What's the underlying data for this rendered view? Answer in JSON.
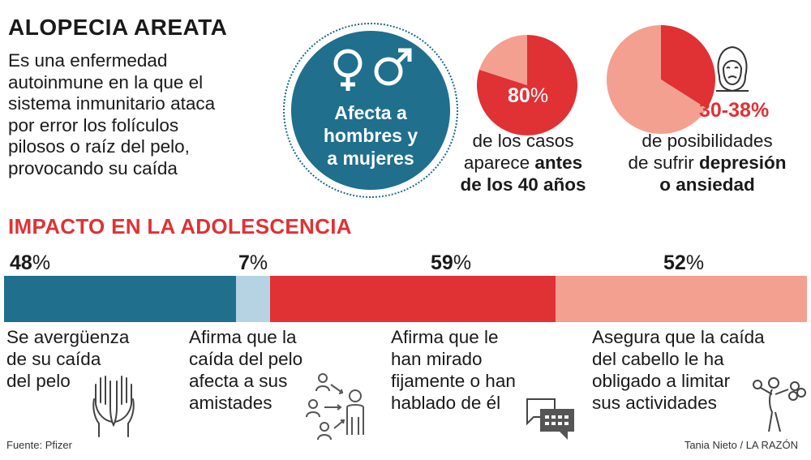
{
  "title": "ALOPECIA AREATA",
  "intro_lines": [
    "Es una enfermedad",
    "autoinmune en la que el",
    "sistema inmunitario ataca",
    "por error los folículos",
    "pilosos o raíz del pelo,",
    "provocando su caída"
  ],
  "gender_circle": {
    "icon": "gender-symbols-icon",
    "lines": [
      "Afecta a",
      "hombres y",
      "a mujeres"
    ]
  },
  "stat_age": {
    "value": "80",
    "unit": "%",
    "line1": "de los casos",
    "line2_regular": "aparece ",
    "line2_bold": "antes",
    "line3_bold": "de los 40 años"
  },
  "stat_depression": {
    "value": "30-38",
    "unit": "%",
    "line1": "de posibilidades",
    "line2_regular": "de sufrir ",
    "line2_bold": "depresión",
    "line3_bold": "o ansiedad",
    "icon": "sad-face-icon"
  },
  "section_title": "IMPACTO EN LA ADOLESCENCIA",
  "chart_data": [
    {
      "type": "pie",
      "title": "de los casos aparece antes de los 40 años",
      "slices": [
        {
          "label": "antes de los 40 años",
          "value": 80,
          "color": "#e03134"
        },
        {
          "label": "resto",
          "value": 20,
          "color": "#f3a091"
        }
      ]
    },
    {
      "type": "pie",
      "title": "de posibilidades de sufrir depresión o ansiedad",
      "range_label": "30-38%",
      "slices": [
        {
          "label": "depresión o ansiedad",
          "value": 34,
          "color": "#e03134"
        },
        {
          "label": "resto",
          "value": 66,
          "color": "#f3a091"
        }
      ]
    },
    {
      "type": "bar",
      "orientation": "horizontal-stacked",
      "title": "IMPACTO EN LA ADOLESCENCIA",
      "bar_values": [
        48,
        7,
        59,
        52
      ],
      "series": [
        {
          "name": "Se avergüenza de su caída del pelo",
          "value": 48,
          "label": "48",
          "unit": "%",
          "color": "#1f6f8d",
          "lines": [
            "Se avergüenza",
            "de su caída",
            "del pelo"
          ],
          "icon": "hands-covering-face-icon"
        },
        {
          "name": "Afirma que la caída del pelo afecta a sus amistades",
          "value": 7,
          "label": "7",
          "unit": "%",
          "color": "#b5d3e2",
          "lines": [
            "Afirma que la",
            "caída del pelo",
            "afecta a sus",
            "amistades"
          ],
          "icon": "social-network-icon"
        },
        {
          "name": "Afirma que le han mirado fijamente o han hablado de él",
          "value": 59,
          "label": "59",
          "unit": "%",
          "color": "#e03134",
          "lines": [
            "Afirma que le",
            "han mirado",
            "fijamente o han",
            "hablado de él"
          ],
          "icon": "speech-bubble-icon"
        },
        {
          "name": "Asegura que la caída del cabello le ha obligado a limitar sus actividades",
          "value": 52,
          "label": "52",
          "unit": "%",
          "color": "#f3a091",
          "lines": [
            "Asegura que la caída",
            "del cabello le ha",
            "obligado a limitar",
            "sus actividades"
          ],
          "icon": "person-chained-icon"
        }
      ]
    }
  ],
  "footer": {
    "source": "Fuente: Pfizer",
    "credit": "Tania Nieto / LA RAZÓN"
  }
}
